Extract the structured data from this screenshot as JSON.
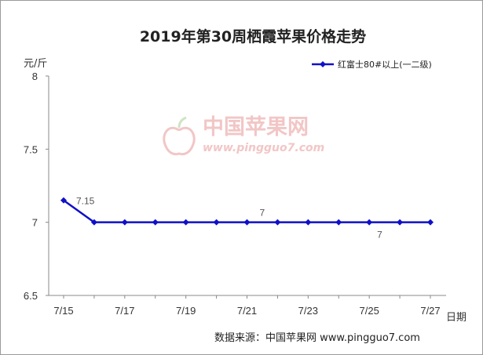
{
  "chart_data": {
    "type": "line",
    "title": "2019年第30周栖霞苹果价格走势",
    "ylabel": "元/斤",
    "xlabel": "日期",
    "ylim": [
      6.5,
      8
    ],
    "yticks": [
      "8",
      "7.5",
      "7",
      "6.5"
    ],
    "x": [
      "7/15",
      "7/16",
      "7/17",
      "7/18",
      "7/19",
      "7/20",
      "7/21",
      "7/22",
      "7/23",
      "7/24",
      "7/25",
      "7/26",
      "7/27"
    ],
    "xtick_labels": [
      "7/15",
      "7/17",
      "7/19",
      "7/21",
      "7/23",
      "7/25",
      "7/27"
    ],
    "series": [
      {
        "name": "红富士80#以上(一二级)",
        "color": "#1010c8",
        "values": [
          7.15,
          7,
          7,
          7,
          7,
          7,
          7,
          7,
          7,
          7,
          7,
          7,
          7
        ]
      }
    ],
    "data_labels": [
      {
        "index": 0,
        "text": "7.15"
      },
      {
        "index": 6,
        "text": "7"
      },
      {
        "index": 10,
        "text": "7"
      }
    ],
    "legend_position": "top-right",
    "grid": false
  },
  "watermark": {
    "name": "中国苹果网",
    "url": "www.pingguo7.com",
    "logo_icon": "apple-logo-icon"
  },
  "source": "数据来源：中国苹果网 www.pingguo7.com"
}
